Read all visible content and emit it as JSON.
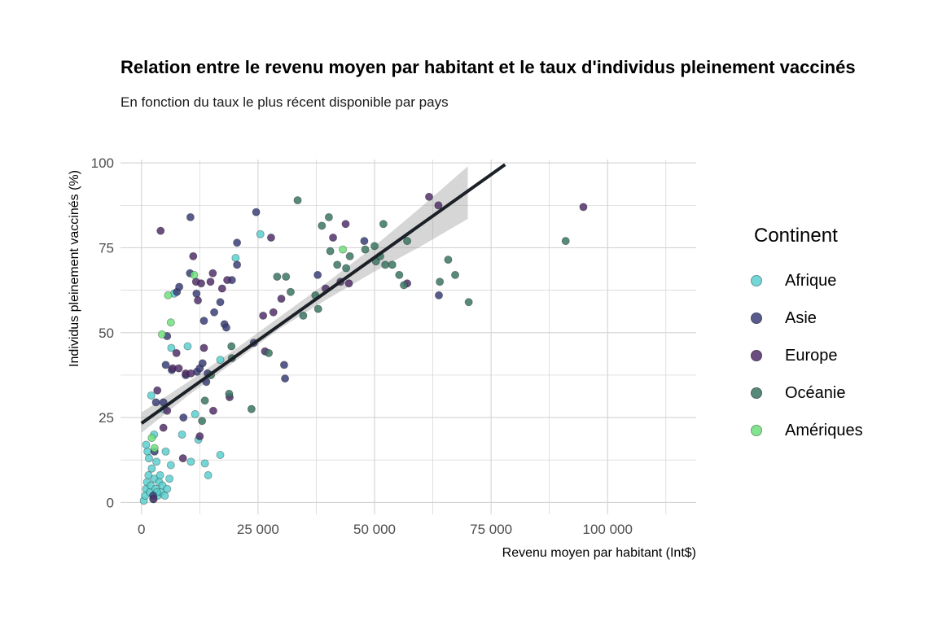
{
  "title": "Relation entre le revenu moyen par habitant et le taux d'individus pleinement vaccinés",
  "subtitle": "En fonction du taux le plus récent disponible par pays",
  "legend": {
    "title": "Continent",
    "items": [
      {
        "label": "Afrique",
        "color": "#5ccfcf"
      },
      {
        "label": "Asie",
        "color": "#3b3f78"
      },
      {
        "label": "Europe",
        "color": "#51306a"
      },
      {
        "label": "Océanie",
        "color": "#3a7564"
      },
      {
        "label": "Amériques",
        "color": "#6ee07c"
      }
    ]
  },
  "chart_data": {
    "type": "scatter",
    "xlabel": "Revenu moyen par habitant (Int$)",
    "ylabel": "Individus pleinement vaccinés (%)",
    "xlim": [
      -4500,
      119000
    ],
    "ylim": [
      -3.5,
      101
    ],
    "x_ticks": [
      0,
      25000,
      50000,
      75000,
      100000
    ],
    "x_tick_labels": [
      "0",
      "25 000",
      "50 000",
      "75 000",
      "100 000"
    ],
    "y_ticks": [
      0,
      25,
      50,
      75,
      100
    ],
    "y_tick_labels": [
      "0",
      "25",
      "50",
      "75",
      "100"
    ],
    "grid": true,
    "legend_position": "right",
    "trend": {
      "type": "linear",
      "x": [
        0,
        78000
      ],
      "y": [
        23.3,
        99.5
      ],
      "ci_x": [
        0,
        10000,
        20000,
        30000,
        40000,
        50000,
        60000,
        70000
      ],
      "ci_low": [
        20.5,
        31.5,
        41.5,
        51.5,
        60.0,
        68.0,
        75.5,
        83.5
      ],
      "ci_high": [
        26.5,
        35.5,
        45.0,
        55.0,
        65.0,
        75.5,
        87.0,
        99.0
      ]
    },
    "series": [
      {
        "name": "Afrique",
        "color": "#5ccfcf",
        "points": [
          [
            500,
            0.5
          ],
          [
            800,
            2
          ],
          [
            1000,
            4
          ],
          [
            1200,
            6
          ],
          [
            1500,
            8
          ],
          [
            1800,
            3
          ],
          [
            2000,
            5
          ],
          [
            2200,
            10
          ],
          [
            2500,
            1
          ],
          [
            2800,
            7
          ],
          [
            3000,
            4
          ],
          [
            3200,
            12
          ],
          [
            3500,
            2
          ],
          [
            3800,
            6
          ],
          [
            4000,
            8
          ],
          [
            4200,
            3
          ],
          [
            4500,
            5
          ],
          [
            5000,
            2
          ],
          [
            5500,
            4
          ],
          [
            6000,
            7
          ],
          [
            1300,
            15
          ],
          [
            2100,
            31.5
          ],
          [
            1000,
            17
          ],
          [
            2700,
            20
          ],
          [
            5200,
            15
          ],
          [
            6300,
            11
          ],
          [
            6400,
            45.5
          ],
          [
            7000,
            61.5
          ],
          [
            8700,
            20
          ],
          [
            9900,
            46
          ],
          [
            10600,
            12
          ],
          [
            11500,
            26
          ],
          [
            12200,
            18.5
          ],
          [
            13600,
            11.5
          ],
          [
            14300,
            8
          ],
          [
            16900,
            14
          ],
          [
            16900,
            42
          ],
          [
            20200,
            72
          ],
          [
            25500,
            79
          ],
          [
            1600,
            13
          ],
          [
            3300,
            3
          ],
          [
            4800,
            27.5
          ]
        ]
      },
      {
        "name": "Asie",
        "color": "#3b3f78",
        "points": [
          [
            2500,
            2
          ],
          [
            3100,
            29.5
          ],
          [
            4700,
            29.5
          ],
          [
            5200,
            40.5
          ],
          [
            5500,
            49
          ],
          [
            6500,
            39
          ],
          [
            7600,
            62
          ],
          [
            8100,
            63.5
          ],
          [
            9500,
            37.5
          ],
          [
            10500,
            84
          ],
          [
            10400,
            67.5
          ],
          [
            11800,
            61.5
          ],
          [
            11900,
            38.5
          ],
          [
            12500,
            39.5
          ],
          [
            13100,
            41
          ],
          [
            13400,
            53.5
          ],
          [
            13900,
            35.5
          ],
          [
            14200,
            38
          ],
          [
            15600,
            56
          ],
          [
            16900,
            59
          ],
          [
            17800,
            52.5
          ],
          [
            18200,
            51.5
          ],
          [
            19400,
            65.5
          ],
          [
            20500,
            70
          ],
          [
            20500,
            76.5
          ],
          [
            24100,
            47
          ],
          [
            24600,
            85.5
          ],
          [
            30600,
            40.5
          ],
          [
            30800,
            36.5
          ],
          [
            37800,
            67
          ],
          [
            47800,
            77
          ],
          [
            63800,
            61
          ],
          [
            9000,
            25
          ],
          [
            2800,
            15
          ]
        ]
      },
      {
        "name": "Europe",
        "color": "#51306a",
        "points": [
          [
            2600,
            1
          ],
          [
            3400,
            33
          ],
          [
            4100,
            80
          ],
          [
            4700,
            22
          ],
          [
            5500,
            27
          ],
          [
            6700,
            39.5
          ],
          [
            7500,
            44
          ],
          [
            8000,
            39.5
          ],
          [
            8900,
            13
          ],
          [
            9500,
            38
          ],
          [
            10600,
            38
          ],
          [
            11100,
            72.5
          ],
          [
            11700,
            65
          ],
          [
            12100,
            59.5
          ],
          [
            12500,
            19.5
          ],
          [
            12800,
            64.5
          ],
          [
            13400,
            45.5
          ],
          [
            14800,
            65
          ],
          [
            15300,
            67.5
          ],
          [
            15400,
            27
          ],
          [
            17300,
            63
          ],
          [
            18400,
            65.5
          ],
          [
            18900,
            31
          ],
          [
            26100,
            55
          ],
          [
            26500,
            44.5
          ],
          [
            27800,
            78
          ],
          [
            28300,
            56
          ],
          [
            30000,
            60
          ],
          [
            39500,
            63
          ],
          [
            41100,
            78
          ],
          [
            42700,
            65
          ],
          [
            43800,
            82
          ],
          [
            44500,
            64.5
          ],
          [
            61700,
            90
          ],
          [
            63700,
            87.5
          ],
          [
            57000,
            64.5
          ],
          [
            94800,
            87
          ]
        ]
      },
      {
        "name": "Océanie",
        "color": "#3a7564",
        "points": [
          [
            13000,
            24
          ],
          [
            13600,
            30
          ],
          [
            14900,
            37.5
          ],
          [
            18800,
            32
          ],
          [
            19300,
            46
          ],
          [
            19400,
            42.5
          ],
          [
            23600,
            27.5
          ],
          [
            27300,
            44
          ],
          [
            29100,
            66.5
          ],
          [
            31000,
            66.5
          ],
          [
            32000,
            62
          ],
          [
            33500,
            89
          ],
          [
            34700,
            55
          ],
          [
            37300,
            61
          ],
          [
            37900,
            57
          ],
          [
            38700,
            81.5
          ],
          [
            40200,
            84
          ],
          [
            40500,
            74
          ],
          [
            42000,
            70
          ],
          [
            43900,
            69
          ],
          [
            44700,
            72.5
          ],
          [
            48000,
            74.5
          ],
          [
            50300,
            71
          ],
          [
            51200,
            72.5
          ],
          [
            51900,
            82
          ],
          [
            52300,
            70
          ],
          [
            53800,
            70
          ],
          [
            55300,
            67
          ],
          [
            56300,
            64
          ],
          [
            57000,
            77
          ],
          [
            64000,
            65
          ],
          [
            65800,
            71.5
          ],
          [
            67300,
            67
          ],
          [
            70200,
            59
          ],
          [
            91000,
            77
          ],
          [
            50000,
            75.5
          ]
        ]
      },
      {
        "name": "Amériques",
        "color": "#6ee07c",
        "points": [
          [
            2200,
            19
          ],
          [
            2800,
            16
          ],
          [
            4400,
            49.5
          ],
          [
            5700,
            61
          ],
          [
            6300,
            53
          ],
          [
            11300,
            67
          ],
          [
            43200,
            74.5
          ]
        ]
      }
    ]
  }
}
